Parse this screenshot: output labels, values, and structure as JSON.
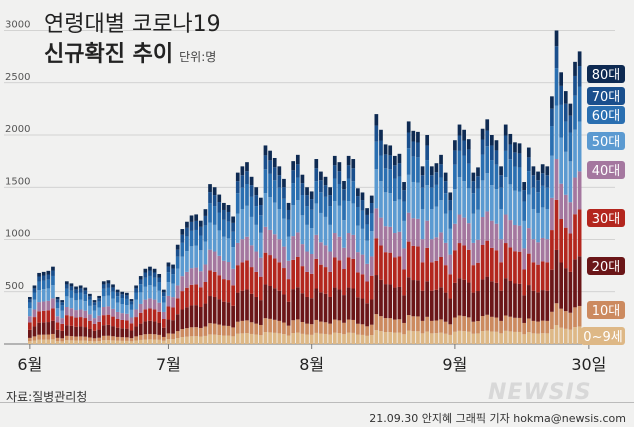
{
  "title_line1": "연령대별 코로나19",
  "title_line2": "신규확진 추이",
  "unit": "단위:명",
  "source": "자료:질병관리청",
  "credit": "21.09.30 안지혜 그래픽 기자 hokma@newsis.com",
  "watermark": "NEWSIS",
  "chart_data": {
    "type": "bar",
    "stacked": true,
    "grid": true,
    "legend": "right",
    "ylim": [
      0,
      3000
    ],
    "yticks": [
      500,
      1000,
      1500,
      2000,
      2500,
      3000
    ],
    "xticks": [
      {
        "label": "6월",
        "index": 0
      },
      {
        "label": "7월",
        "index": 30
      },
      {
        "label": "8월",
        "index": 61
      },
      {
        "label": "9월",
        "index": 92
      },
      {
        "label": "30일",
        "index": 121
      }
    ],
    "series": [
      {
        "name": "0~9세",
        "color": "#deb886"
      },
      {
        "name": "10대",
        "color": "#cc8a5f"
      },
      {
        "name": "20대",
        "color": "#6b1618"
      },
      {
        "name": "30대",
        "color": "#b3261e"
      },
      {
        "name": "40대",
        "color": "#a4779f"
      },
      {
        "name": "50대",
        "color": "#5b9ad1"
      },
      {
        "name": "60대",
        "color": "#2a6fb1"
      },
      {
        "name": "70대",
        "color": "#1a4f8d"
      },
      {
        "name": "80대",
        "color": "#0e2a52"
      }
    ],
    "shares": [
      0.06,
      0.07,
      0.17,
      0.16,
      0.13,
      0.17,
      0.12,
      0.07,
      0.05
    ],
    "totals": [
      450,
      560,
      680,
      690,
      700,
      740,
      450,
      420,
      600,
      580,
      550,
      560,
      540,
      480,
      420,
      460,
      600,
      610,
      570,
      520,
      500,
      490,
      430,
      560,
      650,
      720,
      740,
      720,
      670,
      520,
      780,
      760,
      950,
      1100,
      1170,
      1230,
      1240,
      1180,
      1290,
      1530,
      1500,
      1430,
      1350,
      1330,
      1220,
      1640,
      1700,
      1740,
      1600,
      1500,
      1400,
      1900,
      1850,
      1780,
      1700,
      1580,
      1350,
      1750,
      1810,
      1620,
      1500,
      1460,
      1770,
      1650,
      1600,
      1500,
      1800,
      1740,
      1560,
      1800,
      1770,
      1490,
      1450,
      1300,
      1420,
      2200,
      2050,
      1910,
      1900,
      1800,
      1820,
      1550,
      2130,
      2040,
      2030,
      1700,
      2000,
      1700,
      1730,
      1810,
      1640,
      1450,
      1950,
      2100,
      2050,
      1960,
      1640,
      1690,
      2060,
      2150,
      2000,
      1950,
      1700,
      2100,
      2010,
      1930,
      1920,
      1550,
      1880,
      1700,
      1650,
      1720,
      1700,
      2370,
      3000,
      2600,
      2420,
      2300,
      2700,
      2800
    ]
  },
  "legend_labels": [
    "80대",
    "70대",
    "60대",
    "50대",
    "40대",
    "30대",
    "20대",
    "10대",
    "0~9세"
  ]
}
